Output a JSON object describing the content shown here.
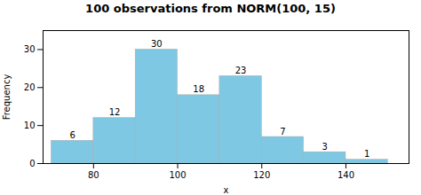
{
  "chart_data": {
    "type": "histogram",
    "title": "100 observations from NORM(100, 15)",
    "xlabel": "x",
    "ylabel": "Frequency",
    "bins": [
      70,
      80,
      90,
      100,
      110,
      120,
      130,
      140,
      150
    ],
    "values": [
      6,
      12,
      30,
      18,
      23,
      7,
      3,
      1
    ],
    "color": "#7ec8e3",
    "xlim": [
      68,
      155
    ],
    "xticks": [
      80,
      100,
      120,
      140
    ],
    "ylim": [
      0,
      35
    ],
    "yticks": [
      0,
      10,
      20,
      30
    ],
    "grid": false,
    "data_labels": true
  }
}
